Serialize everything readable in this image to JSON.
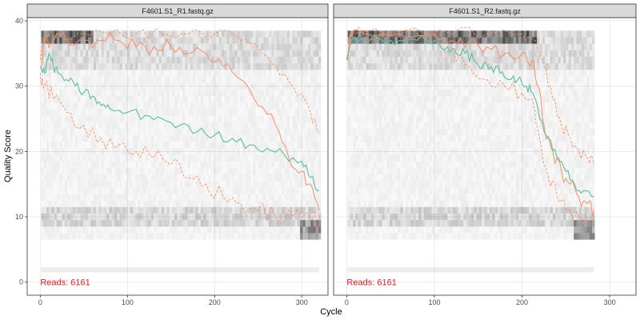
{
  "chart_data": {
    "type": "line",
    "xlabel": "Cycle",
    "ylabel": "Quality Score",
    "xlim": [
      -15,
      330
    ],
    "ylim": [
      -2,
      40.5
    ],
    "x_ticks": [
      0,
      100,
      200,
      300
    ],
    "y_ticks": [
      0,
      10,
      20,
      30,
      40
    ],
    "grid": true,
    "colors": {
      "mean": "#66c2a5",
      "median": "#fc8d62",
      "quartile": "#fc8d62",
      "reads_text": "#e31a1c",
      "strip": "#d9d9d9",
      "heat_dark": "#333333"
    },
    "panels": [
      {
        "title": "F4601.S1_R1.fastq.gz",
        "reads_label": "Reads:  6161",
        "max_cycle": 320,
        "mean_line": [
          [
            0,
            33
          ],
          [
            5,
            32
          ],
          [
            10,
            35
          ],
          [
            15,
            33
          ],
          [
            20,
            32
          ],
          [
            30,
            31
          ],
          [
            40,
            30
          ],
          [
            50,
            29
          ],
          [
            60,
            28.5
          ],
          [
            70,
            27
          ],
          [
            80,
            26.5
          ],
          [
            100,
            26
          ],
          [
            120,
            25.5
          ],
          [
            140,
            25
          ],
          [
            160,
            24
          ],
          [
            180,
            23
          ],
          [
            200,
            22.5
          ],
          [
            220,
            22
          ],
          [
            240,
            21
          ],
          [
            260,
            20.5
          ],
          [
            280,
            19.5
          ],
          [
            300,
            18.5
          ],
          [
            310,
            16
          ],
          [
            320,
            14
          ]
        ],
        "median_line": [
          [
            0,
            33
          ],
          [
            5,
            37
          ],
          [
            15,
            37
          ],
          [
            30,
            37
          ],
          [
            50,
            37
          ],
          [
            70,
            37
          ],
          [
            90,
            37
          ],
          [
            110,
            36
          ],
          [
            130,
            36
          ],
          [
            150,
            36
          ],
          [
            170,
            35
          ],
          [
            190,
            35
          ],
          [
            210,
            33
          ],
          [
            230,
            31
          ],
          [
            250,
            27
          ],
          [
            270,
            24
          ],
          [
            285,
            19
          ],
          [
            300,
            17
          ],
          [
            310,
            15
          ],
          [
            320,
            11
          ]
        ],
        "q25_line": [
          [
            0,
            32
          ],
          [
            5,
            30
          ],
          [
            15,
            28
          ],
          [
            30,
            26
          ],
          [
            50,
            24
          ],
          [
            70,
            22
          ],
          [
            90,
            21
          ],
          [
            110,
            20
          ],
          [
            130,
            19
          ],
          [
            150,
            18
          ],
          [
            170,
            16
          ],
          [
            190,
            15
          ],
          [
            210,
            13
          ],
          [
            230,
            12
          ],
          [
            250,
            11
          ],
          [
            270,
            10
          ],
          [
            290,
            10
          ],
          [
            310,
            10
          ],
          [
            320,
            9
          ]
        ],
        "q75_line": [
          [
            0,
            34
          ],
          [
            5,
            38
          ],
          [
            20,
            38
          ],
          [
            50,
            38
          ],
          [
            80,
            38
          ],
          [
            110,
            38
          ],
          [
            140,
            38
          ],
          [
            170,
            38
          ],
          [
            200,
            38
          ],
          [
            230,
            37
          ],
          [
            250,
            36
          ],
          [
            270,
            33
          ],
          [
            290,
            30
          ],
          [
            310,
            26
          ],
          [
            320,
            23
          ]
        ]
      },
      {
        "title": "F4601.S1_R2.fastq.gz",
        "reads_label": "Reads:  6161",
        "max_cycle": 282,
        "mean_line": [
          [
            0,
            34
          ],
          [
            5,
            37
          ],
          [
            20,
            37
          ],
          [
            40,
            37
          ],
          [
            60,
            37
          ],
          [
            80,
            37
          ],
          [
            100,
            37
          ],
          [
            115,
            36
          ],
          [
            125,
            35
          ],
          [
            135,
            35
          ],
          [
            145,
            34
          ],
          [
            155,
            33
          ],
          [
            165,
            33
          ],
          [
            175,
            32
          ],
          [
            185,
            31
          ],
          [
            195,
            31
          ],
          [
            205,
            30
          ],
          [
            212,
            29
          ],
          [
            220,
            25
          ],
          [
            230,
            22
          ],
          [
            240,
            19
          ],
          [
            250,
            17
          ],
          [
            260,
            15
          ],
          [
            270,
            14
          ],
          [
            282,
            13
          ]
        ],
        "median_line": [
          [
            0,
            34
          ],
          [
            5,
            38
          ],
          [
            20,
            38
          ],
          [
            60,
            38
          ],
          [
            100,
            38
          ],
          [
            120,
            37
          ],
          [
            140,
            37
          ],
          [
            160,
            36
          ],
          [
            180,
            35
          ],
          [
            200,
            35
          ],
          [
            212,
            34
          ],
          [
            218,
            30
          ],
          [
            225,
            24
          ],
          [
            235,
            20
          ],
          [
            245,
            17
          ],
          [
            255,
            15
          ],
          [
            265,
            13
          ],
          [
            275,
            12
          ],
          [
            282,
            11
          ]
        ],
        "q25_line": [
          [
            0,
            34
          ],
          [
            5,
            38
          ],
          [
            40,
            38
          ],
          [
            90,
            38
          ],
          [
            120,
            36
          ],
          [
            140,
            33
          ],
          [
            160,
            31
          ],
          [
            180,
            30
          ],
          [
            200,
            29
          ],
          [
            212,
            28
          ],
          [
            220,
            22
          ],
          [
            230,
            16
          ],
          [
            240,
            13
          ],
          [
            250,
            11
          ],
          [
            260,
            10
          ],
          [
            270,
            9
          ],
          [
            282,
            9
          ]
        ],
        "q75_line": [
          [
            0,
            34
          ],
          [
            5,
            38
          ],
          [
            60,
            38
          ],
          [
            120,
            38
          ],
          [
            160,
            38
          ],
          [
            200,
            38
          ],
          [
            215,
            37
          ],
          [
            225,
            33
          ],
          [
            235,
            28
          ],
          [
            245,
            24
          ],
          [
            255,
            22
          ],
          [
            265,
            20
          ],
          [
            275,
            19
          ],
          [
            282,
            18
          ]
        ]
      }
    ]
  }
}
